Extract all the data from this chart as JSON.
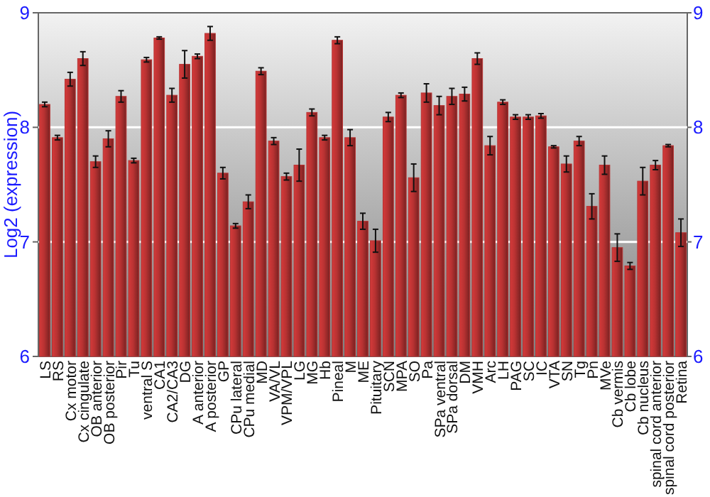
{
  "chart_data": {
    "type": "bar",
    "ylabel": "Log2 (expression)",
    "categories": [
      "LS",
      "RS",
      "Cx motor",
      "Cx cingulate",
      "OB anterior",
      "OB posterior",
      "Pir",
      "Tu",
      "ventral S",
      "CA1",
      "CA2/CA3",
      "DG",
      "A anterior",
      "A posterior",
      "GP",
      "CPu lateral",
      "CPu medial",
      "MD",
      "VA/VL",
      "VPM/VPL",
      "LG",
      "MG",
      "Hb",
      "Pineal",
      "M",
      "ME",
      "Pituitary",
      "SCN",
      "MPA",
      "SO",
      "Pa",
      "SPa ventral",
      "SPa dorsal",
      "DM",
      "VMH",
      "Arc",
      "LH",
      "PAG",
      "SC",
      "IC",
      "VTA",
      "SN",
      "Tg",
      "Pn",
      "MVe",
      "Cb vermis",
      "Cb lobe",
      "Cb nucleus",
      "spinal cord anterior",
      "spinal cord posterior",
      "Retina"
    ],
    "values": [
      8.2,
      7.91,
      8.42,
      8.6,
      7.7,
      7.9,
      8.27,
      7.71,
      8.59,
      8.78,
      8.28,
      8.55,
      8.62,
      8.82,
      7.6,
      7.14,
      7.35,
      8.49,
      7.88,
      7.57,
      7.67,
      8.13,
      7.91,
      8.76,
      7.91,
      7.18,
      7.01,
      8.09,
      8.28,
      7.56,
      8.3,
      8.19,
      8.27,
      8.29,
      8.6,
      7.84,
      8.22,
      8.09,
      8.09,
      8.1,
      7.83,
      7.68,
      7.88,
      7.31,
      7.67,
      6.95,
      6.79,
      7.53,
      7.67,
      7.84,
      7.08
    ],
    "errors": [
      0.02,
      0.02,
      0.06,
      0.06,
      0.05,
      0.07,
      0.05,
      0.02,
      0.02,
      0.01,
      0.06,
      0.12,
      0.02,
      0.06,
      0.05,
      0.02,
      0.06,
      0.03,
      0.03,
      0.03,
      0.14,
      0.03,
      0.02,
      0.03,
      0.07,
      0.07,
      0.1,
      0.04,
      0.02,
      0.12,
      0.08,
      0.08,
      0.07,
      0.06,
      0.05,
      0.08,
      0.02,
      0.02,
      0.02,
      0.02,
      0.01,
      0.07,
      0.04,
      0.11,
      0.08,
      0.12,
      0.03,
      0.12,
      0.04,
      0.01,
      0.12
    ],
    "color": "#b83232",
    "ylim": [
      6,
      9
    ],
    "yticks": [
      6,
      7,
      8,
      9
    ],
    "y2lim": [
      6,
      9
    ],
    "y2ticks": [
      6,
      7,
      8,
      9
    ],
    "grid": "y"
  }
}
